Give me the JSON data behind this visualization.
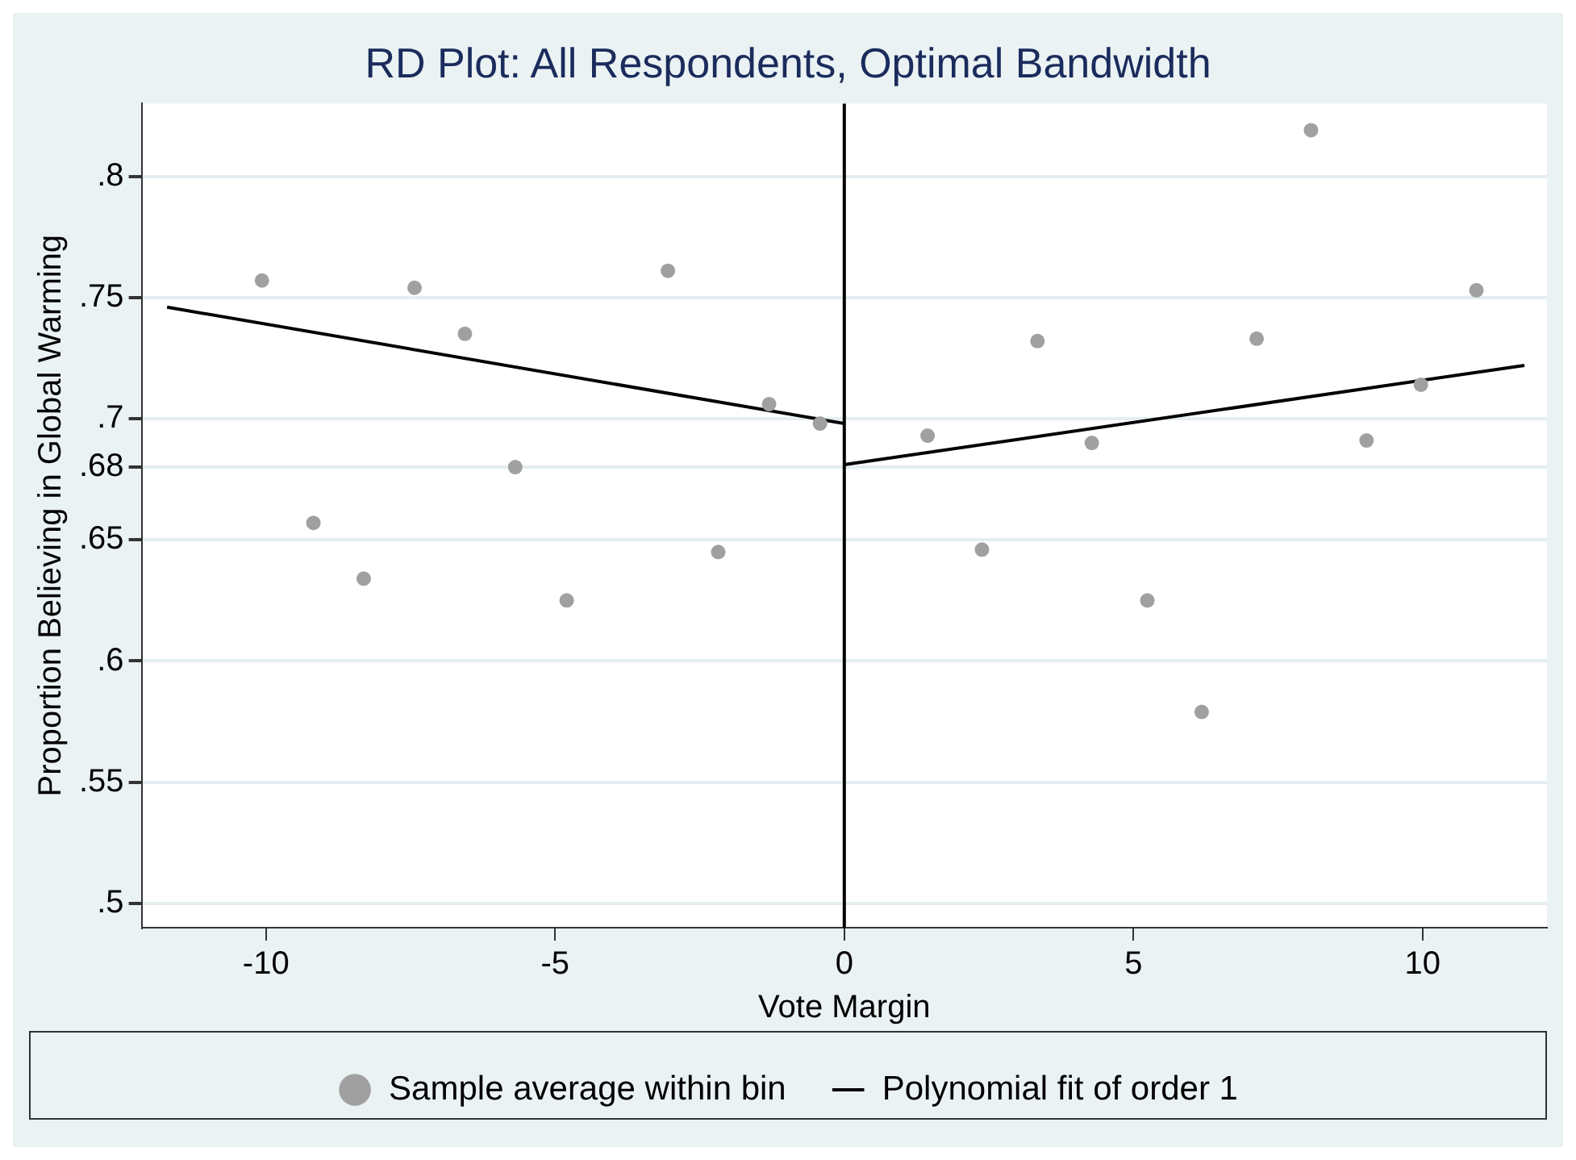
{
  "chart_data": {
    "type": "scatter",
    "title": "RD Plot: All Respondents, Optimal Bandwidth",
    "xlabel": "Vote Margin",
    "ylabel": "Proportion Believing in Global Warming",
    "xlim": [
      -12.15,
      12.15
    ],
    "xticks": [
      -10,
      -5,
      0,
      5,
      10
    ],
    "ylim": [
      0.49,
      0.83
    ],
    "yticks": [
      {
        "value": 0.5,
        "label": ".5"
      },
      {
        "value": 0.55,
        "label": ".55"
      },
      {
        "value": 0.6,
        "label": ".6"
      },
      {
        "value": 0.65,
        "label": ".65"
      },
      {
        "value": 0.68,
        "label": ".68"
      },
      {
        "value": 0.7,
        "label": ".7"
      },
      {
        "value": 0.75,
        "label": ".75"
      },
      {
        "value": 0.8,
        "label": ".8"
      }
    ],
    "grid": "y",
    "legend": "bottom",
    "ref_lines": [
      {
        "axis": "x",
        "value": 0,
        "color": "#000000"
      }
    ],
    "series": [
      {
        "name": "Sample average within bin",
        "type": "scatter",
        "marker": "circle",
        "color": "#a0a0a0",
        "x": [
          -10.07,
          -9.18,
          -8.31,
          -7.43,
          -6.56,
          -5.69,
          -4.8,
          -3.05,
          -2.18,
          -1.3,
          -0.42,
          1.44,
          2.38,
          3.34,
          4.28,
          5.24,
          6.18,
          7.13,
          8.07,
          9.03,
          9.97,
          10.93
        ],
        "values": [
          0.757,
          0.657,
          0.634,
          0.754,
          0.735,
          0.68,
          0.625,
          0.761,
          0.645,
          0.706,
          0.698,
          0.693,
          0.646,
          0.732,
          0.69,
          0.625,
          0.579,
          0.733,
          0.819,
          0.691,
          0.714,
          0.753
        ]
      },
      {
        "name": "Polynomial fit of order 1",
        "type": "line",
        "marker": "none",
        "color": "#000000",
        "line_style": "solid",
        "x": [
          -11.71,
          0
        ],
        "values": [
          0.746,
          0.698
        ]
      },
      {
        "type": "line",
        "marker": "none",
        "color": "#000000",
        "line_style": "solid",
        "x": [
          0,
          11.76
        ],
        "values": [
          0.681,
          0.722
        ]
      }
    ]
  }
}
